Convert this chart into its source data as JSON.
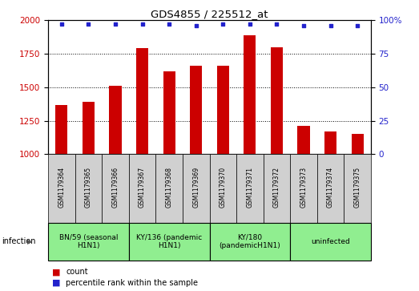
{
  "title": "GDS4855 / 225512_at",
  "samples": [
    "GSM1179364",
    "GSM1179365",
    "GSM1179366",
    "GSM1179367",
    "GSM1179368",
    "GSM1179369",
    "GSM1179370",
    "GSM1179371",
    "GSM1179372",
    "GSM1179373",
    "GSM1179374",
    "GSM1179375"
  ],
  "counts": [
    1365,
    1390,
    1510,
    1790,
    1620,
    1660,
    1660,
    1890,
    1800,
    1210,
    1170,
    1155
  ],
  "percentiles": [
    97,
    97,
    97,
    97,
    97,
    96,
    97,
    97,
    97,
    96,
    96,
    96
  ],
  "bar_color": "#cc0000",
  "dot_color": "#2222cc",
  "ylim_left": [
    1000,
    2000
  ],
  "ylim_right": [
    0,
    100
  ],
  "yticks_left": [
    1000,
    1250,
    1500,
    1750,
    2000
  ],
  "yticks_right": [
    0,
    25,
    50,
    75,
    100
  ],
  "grid_values": [
    1250,
    1500,
    1750
  ],
  "groups": [
    {
      "label": "BN/59 (seasonal\nH1N1)",
      "start": 0,
      "end": 3,
      "color": "#90ee90"
    },
    {
      "label": "KY/136 (pandemic\nH1N1)",
      "start": 3,
      "end": 6,
      "color": "#90ee90"
    },
    {
      "label": "KY/180\n(pandemicH1N1)",
      "start": 6,
      "end": 9,
      "color": "#90ee90"
    },
    {
      "label": "uninfected",
      "start": 9,
      "end": 12,
      "color": "#90ee90"
    }
  ],
  "infection_label": "infection",
  "legend_count_label": "count",
  "legend_percentile_label": "percentile rank within the sample",
  "sample_box_color": "#d0d0d0",
  "bar_width": 0.45
}
